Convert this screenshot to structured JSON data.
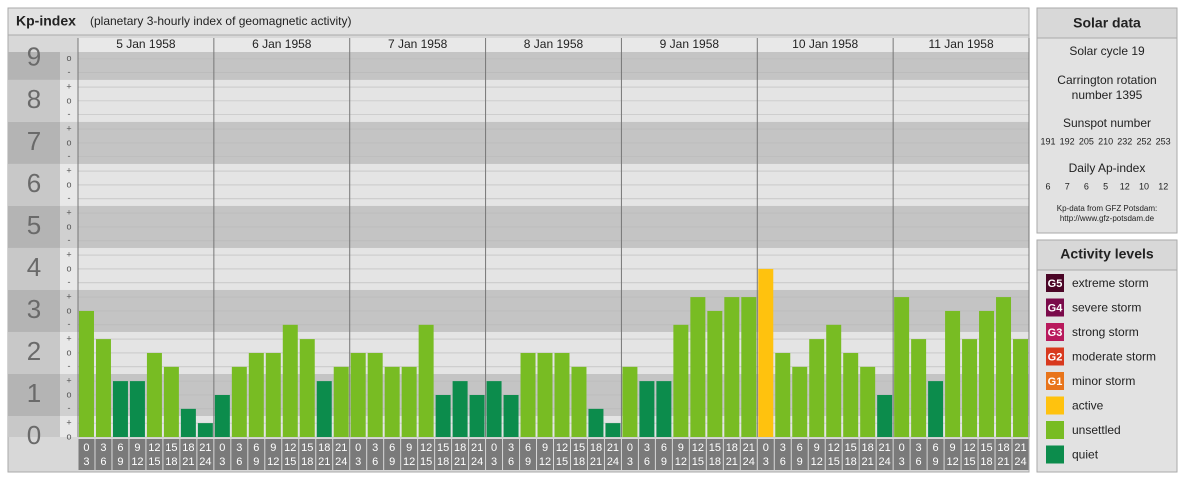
{
  "header": {
    "title": "Kp-index",
    "subtitle": "(planetary 3-hourly index of geomagnetic activity)"
  },
  "chart_data": {
    "type": "bar",
    "categories": [
      "5 Jan 1958",
      "6 Jan 1958",
      "7 Jan 1958",
      "8 Jan 1958",
      "9 Jan 1958",
      "10 Jan 1958",
      "11 Jan 1958"
    ],
    "hour_labels": [
      [
        "0",
        "3"
      ],
      [
        "3",
        "6"
      ],
      [
        "6",
        "9"
      ],
      [
        "9",
        "12"
      ],
      [
        "12",
        "15"
      ],
      [
        "15",
        "18"
      ],
      [
        "18",
        "21"
      ],
      [
        "21",
        "24"
      ]
    ],
    "values": [
      [
        3,
        2.33,
        1.33,
        1.33,
        2,
        1.67,
        0.67,
        0.33
      ],
      [
        1,
        1.67,
        2,
        2,
        2.67,
        2.33,
        1.33,
        1.67
      ],
      [
        2,
        2,
        1.67,
        1.67,
        2.67,
        1,
        1.33,
        1
      ],
      [
        1.33,
        1,
        2,
        2,
        2,
        1.67,
        0.67,
        0.33
      ],
      [
        1.67,
        1.33,
        1.33,
        2.67,
        3.33,
        3,
        3.33,
        3.33
      ],
      [
        4,
        2,
        1.67,
        2.33,
        2.67,
        2,
        1.67,
        1
      ],
      [
        3.33,
        2.33,
        1.33,
        3,
        2.33,
        3,
        3.33,
        2.33
      ]
    ],
    "colors": [
      [
        "#78bc23",
        "#78bc23",
        "#0c8c4c",
        "#0c8c4c",
        "#78bc23",
        "#78bc23",
        "#0c8c4c",
        "#0c8c4c"
      ],
      [
        "#0c8c4c",
        "#78bc23",
        "#78bc23",
        "#78bc23",
        "#78bc23",
        "#78bc23",
        "#0c8c4c",
        "#78bc23"
      ],
      [
        "#78bc23",
        "#78bc23",
        "#78bc23",
        "#78bc23",
        "#78bc23",
        "#0c8c4c",
        "#0c8c4c",
        "#0c8c4c"
      ],
      [
        "#0c8c4c",
        "#0c8c4c",
        "#78bc23",
        "#78bc23",
        "#78bc23",
        "#78bc23",
        "#0c8c4c",
        "#0c8c4c"
      ],
      [
        "#78bc23",
        "#0c8c4c",
        "#0c8c4c",
        "#78bc23",
        "#78bc23",
        "#78bc23",
        "#78bc23",
        "#78bc23"
      ],
      [
        "#ffc20e",
        "#78bc23",
        "#78bc23",
        "#78bc23",
        "#78bc23",
        "#78bc23",
        "#78bc23",
        "#0c8c4c"
      ],
      [
        "#78bc23",
        "#78bc23",
        "#0c8c4c",
        "#78bc23",
        "#78bc23",
        "#78bc23",
        "#78bc23",
        "#78bc23"
      ]
    ],
    "ylim": [
      0,
      9.33
    ],
    "yticks": [
      0,
      1,
      2,
      3,
      4,
      5,
      6,
      7,
      8,
      9
    ],
    "yminor": [
      {
        "value": 0,
        "label": "o"
      },
      {
        "value": 0.33,
        "label": "+"
      },
      {
        "value": 0.67,
        "label": "-"
      },
      {
        "value": 1,
        "label": "o"
      },
      {
        "value": 1.33,
        "label": "+"
      },
      {
        "value": 1.67,
        "label": "-"
      },
      {
        "value": 2,
        "label": "o"
      },
      {
        "value": 2.33,
        "label": "+"
      },
      {
        "value": 2.67,
        "label": "-"
      },
      {
        "value": 3,
        "label": "o"
      },
      {
        "value": 3.33,
        "label": "+"
      },
      {
        "value": 3.67,
        "label": "-"
      },
      {
        "value": 4,
        "label": "o"
      },
      {
        "value": 4.33,
        "label": "+"
      },
      {
        "value": 4.67,
        "label": "-"
      },
      {
        "value": 5,
        "label": "o"
      },
      {
        "value": 5.33,
        "label": "+"
      },
      {
        "value": 5.67,
        "label": "-"
      },
      {
        "value": 6,
        "label": "o"
      },
      {
        "value": 6.33,
        "label": "+"
      },
      {
        "value": 6.67,
        "label": "-"
      },
      {
        "value": 7,
        "label": "o"
      },
      {
        "value": 7.33,
        "label": "+"
      },
      {
        "value": 7.67,
        "label": "-"
      },
      {
        "value": 8,
        "label": "o"
      },
      {
        "value": 8.33,
        "label": "+"
      },
      {
        "value": 8.67,
        "label": "-"
      },
      {
        "value": 9,
        "label": "o"
      }
    ],
    "grid": true
  },
  "solar": {
    "title": "Solar data",
    "cycle": "Solar cycle 19",
    "carrington_1": "Carrington rotation",
    "carrington_2": "number 1395",
    "sunspot_title": "Sunspot number",
    "sunspot": [
      191,
      192,
      205,
      210,
      232,
      252,
      253
    ],
    "ap_title": "Daily Ap-index",
    "ap": [
      6,
      7,
      6,
      5,
      12,
      10,
      12
    ],
    "source": "Kp-data from GFZ Potsdam:",
    "url": "http://www.gfz-potsdam.de"
  },
  "legend": {
    "title": "Activity levels",
    "items": [
      {
        "badge": "G5",
        "label": "extreme storm",
        "color": "#4a0526"
      },
      {
        "badge": "G4",
        "label": "severe storm",
        "color": "#7a0a4a"
      },
      {
        "badge": "G3",
        "label": "strong storm",
        "color": "#b8195c"
      },
      {
        "badge": "G2",
        "label": "moderate storm",
        "color": "#d8391e"
      },
      {
        "badge": "G1",
        "label": "minor storm",
        "color": "#e8741a"
      },
      {
        "label": "active",
        "color": "#ffc20e"
      },
      {
        "label": "unsettled",
        "color": "#78bc23"
      },
      {
        "label": "quiet",
        "color": "#0c8c4c"
      }
    ]
  }
}
